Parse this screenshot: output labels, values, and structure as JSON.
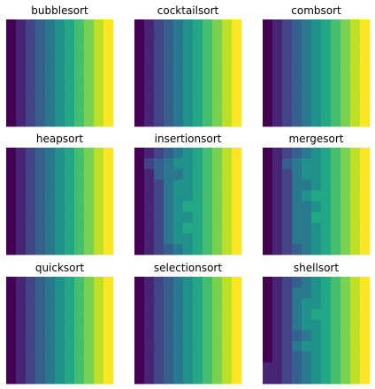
{
  "chart_data": [
    {
      "type": "heatmap",
      "title": "bubblesort",
      "colormap": "viridis",
      "grid": false,
      "axes_visible": false,
      "rows": [
        [
          0,
          1,
          2,
          3,
          4,
          5,
          6,
          7,
          8,
          9,
          10
        ],
        [
          0,
          1,
          2,
          3,
          4,
          5,
          6,
          7,
          8,
          9,
          10
        ],
        [
          0,
          1,
          2,
          3,
          4,
          5,
          6,
          7,
          8,
          9,
          10
        ],
        [
          0,
          1,
          2,
          3,
          4,
          5,
          6,
          7,
          8,
          9,
          10
        ],
        [
          0,
          1,
          2,
          3,
          4,
          5,
          6,
          7,
          8,
          9,
          10
        ],
        [
          0,
          1,
          2,
          3,
          4,
          5,
          6,
          7,
          8,
          9,
          10
        ],
        [
          0,
          1,
          2,
          3,
          4,
          5,
          6,
          7,
          8,
          9,
          10
        ],
        [
          0,
          1,
          2,
          3,
          4,
          5,
          6,
          7,
          8,
          9,
          10
        ],
        [
          0,
          1,
          2,
          3,
          4,
          5,
          6,
          7,
          8,
          9,
          10
        ],
        [
          0,
          1,
          2,
          3,
          4,
          5,
          6,
          7,
          8,
          9,
          10
        ]
      ]
    },
    {
      "type": "heatmap",
      "title": "cocktailsort",
      "colormap": "viridis",
      "grid": false,
      "axes_visible": false,
      "rows": [
        [
          0,
          1,
          2,
          3,
          4,
          5,
          6,
          7,
          8,
          9,
          10
        ],
        [
          0,
          1,
          2,
          3,
          4,
          5,
          6,
          7,
          8,
          9,
          10
        ],
        [
          0,
          1,
          2,
          3,
          4,
          5,
          6,
          7,
          8,
          9,
          10
        ],
        [
          0,
          1,
          2,
          3,
          4,
          5,
          6,
          7,
          8,
          9,
          10
        ],
        [
          0,
          1,
          2,
          3,
          4,
          5,
          6,
          7,
          8,
          9,
          10
        ],
        [
          0,
          1,
          2,
          3,
          4,
          5,
          6,
          7,
          8,
          9,
          10
        ],
        [
          0,
          1,
          2,
          3,
          4,
          5,
          6,
          7,
          8,
          9,
          10
        ],
        [
          0,
          1,
          2,
          3,
          4,
          5,
          6,
          7,
          8,
          9,
          10
        ],
        [
          0,
          1,
          2,
          3,
          4,
          5,
          6,
          7,
          8,
          9,
          10
        ],
        [
          0,
          1,
          2,
          3,
          4,
          5,
          6,
          7,
          8,
          9,
          10
        ]
      ]
    },
    {
      "type": "heatmap",
      "title": "combsort",
      "colormap": "viridis",
      "grid": false,
      "axes_visible": false,
      "rows": [
        [
          0,
          1,
          2,
          3,
          4,
          5,
          6,
          7,
          8,
          9,
          10
        ],
        [
          0,
          1,
          2,
          3,
          4,
          5,
          6,
          7,
          8,
          9,
          10
        ],
        [
          0,
          1,
          2,
          3,
          4,
          5,
          6,
          7,
          8,
          9,
          10
        ],
        [
          0,
          1,
          2,
          3,
          4,
          5,
          6,
          7,
          8,
          9,
          10
        ],
        [
          0,
          1,
          2,
          3,
          4,
          5,
          6,
          7,
          8,
          9,
          10
        ],
        [
          0,
          1,
          2,
          3,
          4,
          5,
          6,
          7,
          8,
          9,
          10
        ],
        [
          0,
          1,
          2,
          3,
          4,
          5,
          6,
          7,
          8,
          9,
          10
        ],
        [
          0,
          1,
          2,
          3,
          4,
          5,
          6,
          7,
          8,
          9,
          10
        ],
        [
          0,
          1,
          2,
          3,
          4,
          5,
          6,
          7,
          8,
          9,
          10
        ],
        [
          0,
          1,
          2,
          3,
          4,
          5,
          6,
          7,
          8,
          9,
          10
        ]
      ]
    },
    {
      "type": "heatmap",
      "title": "heapsort",
      "colormap": "viridis",
      "grid": false,
      "axes_visible": false,
      "rows": [
        [
          0,
          1,
          2,
          3,
          4,
          5,
          6,
          7,
          8,
          9,
          10
        ],
        [
          0,
          1,
          2,
          3,
          4,
          5,
          6,
          7,
          8,
          9,
          10
        ],
        [
          0,
          1,
          2,
          3,
          4,
          5,
          6,
          7,
          8,
          9,
          10
        ],
        [
          0,
          1,
          2,
          3,
          4,
          5,
          6,
          7,
          8,
          9,
          10
        ],
        [
          0,
          1,
          2,
          3,
          4,
          5,
          6,
          7,
          8,
          9,
          10
        ],
        [
          0,
          1,
          2,
          3,
          4,
          5,
          6,
          7,
          8,
          9,
          10
        ],
        [
          0,
          1,
          2,
          3,
          4,
          5,
          6,
          7,
          8,
          9,
          10
        ],
        [
          0,
          1,
          2,
          3,
          4,
          5,
          6,
          7,
          8,
          9,
          10
        ],
        [
          0,
          1,
          2,
          3,
          4,
          5,
          6,
          7,
          8,
          9,
          10
        ],
        [
          0,
          1,
          2,
          3,
          4,
          5,
          6,
          7,
          8,
          9,
          10
        ]
      ]
    },
    {
      "type": "heatmap",
      "title": "insertionsort",
      "colormap": "viridis",
      "grid": false,
      "axes_visible": false,
      "rows": [
        [
          0,
          1,
          2,
          3,
          4,
          5,
          6,
          7,
          8,
          9,
          10
        ],
        [
          0,
          2,
          3,
          4,
          5,
          5,
          6,
          7,
          8,
          9,
          10
        ],
        [
          0,
          1,
          3,
          4,
          4,
          5,
          6,
          7,
          8,
          9,
          10
        ],
        [
          0,
          1,
          2,
          4,
          5,
          5,
          6,
          7,
          8,
          9,
          10
        ],
        [
          0,
          1,
          2,
          4,
          5,
          5,
          6,
          7,
          8,
          9,
          10
        ],
        [
          0,
          1,
          2,
          4,
          5,
          6,
          6,
          7,
          8,
          9,
          10
        ],
        [
          0,
          1,
          2,
          4,
          5,
          5,
          6,
          7,
          8,
          9,
          10
        ],
        [
          0,
          1,
          2,
          4,
          5,
          6,
          6,
          7,
          8,
          9,
          10
        ],
        [
          0,
          1,
          2,
          4,
          5,
          5,
          6,
          7,
          8,
          9,
          10
        ],
        [
          0,
          1,
          2,
          3,
          4,
          5,
          6,
          7,
          8,
          9,
          10
        ]
      ]
    },
    {
      "type": "heatmap",
      "title": "mergesort",
      "colormap": "viridis",
      "grid": false,
      "axes_visible": false,
      "rows": [
        [
          0,
          1,
          2,
          3,
          4,
          5,
          6,
          7,
          8,
          9,
          10
        ],
        [
          0,
          1,
          3,
          4,
          5,
          5,
          6,
          7,
          8,
          9,
          10
        ],
        [
          0,
          1,
          2,
          4,
          5,
          5,
          6,
          7,
          8,
          9,
          10
        ],
        [
          0,
          1,
          2,
          4,
          4,
          5,
          6,
          7,
          8,
          9,
          10
        ],
        [
          0,
          1,
          2,
          4,
          5,
          6,
          6,
          7,
          8,
          9,
          10
        ],
        [
          0,
          1,
          2,
          4,
          4,
          5,
          6,
          7,
          8,
          9,
          10
        ],
        [
          0,
          1,
          2,
          4,
          4,
          6,
          6,
          7,
          8,
          9,
          10
        ],
        [
          0,
          1,
          2,
          4,
          4,
          5,
          6,
          7,
          8,
          9,
          10
        ],
        [
          0,
          1,
          2,
          4,
          4,
          5,
          6,
          7,
          8,
          9,
          10
        ],
        [
          0,
          1,
          2,
          3,
          4,
          5,
          6,
          7,
          8,
          9,
          10
        ]
      ]
    },
    {
      "type": "heatmap",
      "title": "quicksort",
      "colormap": "viridis",
      "grid": false,
      "axes_visible": false,
      "rows": [
        [
          0,
          1,
          2,
          3,
          4,
          5,
          6,
          7,
          8,
          9,
          10
        ],
        [
          0,
          1,
          2,
          3,
          4,
          5,
          6,
          7,
          8,
          9,
          10
        ],
        [
          0,
          1,
          2,
          3,
          4,
          5,
          6,
          7,
          8,
          9,
          10
        ],
        [
          0,
          1,
          2,
          3,
          4,
          5,
          6,
          7,
          8,
          9,
          10
        ],
        [
          0,
          1,
          2,
          3,
          4,
          5,
          6,
          7,
          8,
          9,
          10
        ],
        [
          0,
          1,
          2,
          3,
          4,
          5,
          6,
          7,
          8,
          9,
          10
        ],
        [
          0,
          1,
          2,
          3,
          4,
          5,
          6,
          7,
          8,
          9,
          10
        ],
        [
          0,
          1,
          2,
          3,
          4,
          5,
          6,
          7,
          8,
          9,
          10
        ],
        [
          0,
          1,
          2,
          3,
          4,
          5,
          6,
          7,
          8,
          9,
          10
        ],
        [
          0,
          1,
          2,
          3,
          4,
          5,
          6,
          7,
          8,
          9,
          10
        ]
      ]
    },
    {
      "type": "heatmap",
      "title": "selectionsort",
      "colormap": "viridis",
      "grid": false,
      "axes_visible": false,
      "rows": [
        [
          0,
          1,
          2,
          3,
          4,
          5,
          6,
          7,
          8,
          9,
          10
        ],
        [
          0,
          1,
          2,
          3,
          4,
          5,
          6,
          7,
          8,
          9,
          10
        ],
        [
          0,
          1,
          2,
          3,
          4,
          5,
          6,
          7,
          8,
          9,
          10
        ],
        [
          0,
          1,
          2,
          3,
          4,
          5,
          6,
          7,
          8,
          9,
          10
        ],
        [
          0,
          1,
          2,
          3,
          4,
          5,
          6,
          7,
          8,
          9,
          10
        ],
        [
          0,
          1,
          2,
          3,
          4,
          5,
          6,
          7,
          8,
          9,
          10
        ],
        [
          0,
          1,
          2,
          3,
          4,
          5,
          6,
          7,
          8,
          9,
          10
        ],
        [
          0,
          1,
          2,
          3,
          4,
          5,
          6,
          7,
          8,
          9,
          10
        ],
        [
          0,
          1,
          2,
          3,
          4,
          5,
          6,
          7,
          8,
          9,
          10
        ],
        [
          0,
          1,
          2,
          3,
          4,
          5,
          6,
          7,
          8,
          9,
          10
        ]
      ]
    },
    {
      "type": "heatmap",
      "title": "shellsort",
      "colormap": "viridis",
      "grid": false,
      "axes_visible": false,
      "rows": [
        [
          0,
          1,
          2,
          3,
          4,
          5,
          6,
          7,
          8,
          9,
          10
        ],
        [
          0,
          1,
          2,
          4,
          4,
          5,
          6,
          7,
          8,
          9,
          10
        ],
        [
          0,
          1,
          2,
          4,
          5,
          5,
          6,
          7,
          8,
          9,
          10
        ],
        [
          0,
          1,
          2,
          4,
          5,
          6,
          6,
          7,
          8,
          9,
          10
        ],
        [
          0,
          1,
          2,
          4,
          5,
          5,
          6,
          7,
          8,
          9,
          10
        ],
        [
          0,
          1,
          2,
          3,
          4,
          5,
          6,
          7,
          8,
          9,
          10
        ],
        [
          0,
          1,
          2,
          4,
          5,
          5,
          6,
          7,
          8,
          9,
          10
        ],
        [
          0,
          1,
          2,
          3,
          4,
          5,
          6,
          7,
          8,
          9,
          10
        ],
        [
          1,
          1,
          2,
          3,
          4,
          5,
          6,
          7,
          8,
          9,
          10
        ],
        [
          1,
          1,
          2,
          3,
          4,
          5,
          6,
          7,
          8,
          9,
          10
        ]
      ]
    }
  ]
}
